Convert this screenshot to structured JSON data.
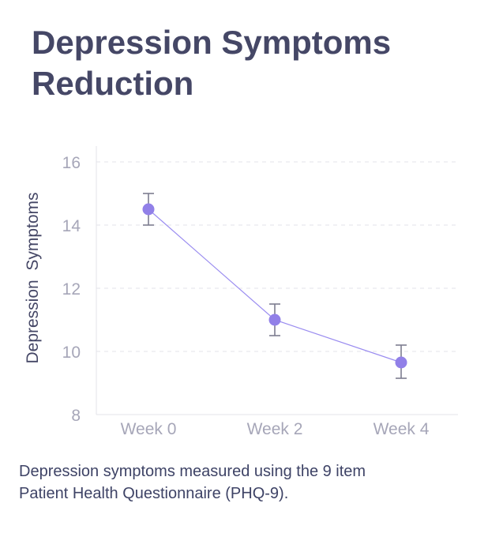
{
  "title": {
    "line1": "Depression Symptoms",
    "line2": "Reduction"
  },
  "caption": {
    "line1": "Depression symptoms measured using the 9 item",
    "line2": "Patient Health Questionnaire (PHQ-9)."
  },
  "colors": {
    "title": "#454766",
    "point": "#9180e8",
    "line": "#9a8cf0",
    "errorbar": "#7d7d8f",
    "tick": "#a6a6b8",
    "grid": "#e3e3ea",
    "axis": "#e3e3ea"
  },
  "chart_data": {
    "type": "line",
    "title": "",
    "xlabel": "",
    "ylabel": "Depression  Symptoms",
    "categories": [
      "Week 0",
      "Week 2",
      "Week 4"
    ],
    "series": [
      {
        "name": "PHQ-9",
        "values": [
          14.5,
          11.0,
          9.65
        ],
        "error_low": [
          14.0,
          10.5,
          9.15
        ],
        "error_high": [
          15.0,
          11.5,
          10.2
        ]
      }
    ],
    "ylim": [
      8,
      16
    ],
    "yticks": [
      8,
      10,
      12,
      14,
      16
    ],
    "grid": true,
    "legend": "none"
  }
}
